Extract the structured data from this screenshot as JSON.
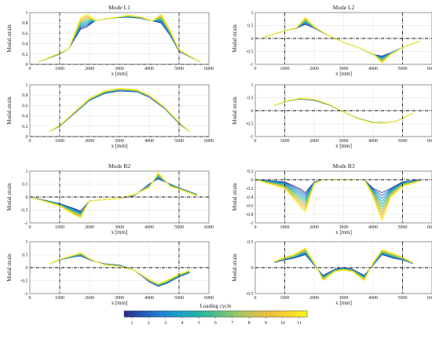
{
  "chart_data": {
    "type": "line",
    "cycles": [
      1,
      2,
      3,
      4,
      5,
      6,
      7,
      8,
      9,
      10,
      11
    ],
    "colorbar": {
      "label": "Loading cycle",
      "ticks": [
        "1",
        "2",
        "3",
        "4",
        "5",
        "6",
        "7",
        "8",
        "9",
        "10",
        "11"
      ],
      "colors": [
        "#2b2f8e",
        "#1f5bb8",
        "#1e82d4",
        "#1aa2c8",
        "#21b3a4",
        "#4fbd86",
        "#8fc56a",
        "#c6c452",
        "#edbc3c",
        "#f9d12e",
        "#f7f41a"
      ]
    },
    "xlim": [
      0,
      6000
    ],
    "xticks": [
      "0",
      "1000",
      "2000",
      "3000",
      "4000",
      "5000",
      "6000"
    ],
    "xlabel": "x [mm]",
    "ylabel": "Modal strain",
    "vlines": [
      1000,
      5000
    ],
    "hline": 0,
    "panels": [
      {
        "id": "l1-measured",
        "title": "Mode L1",
        "ylim": [
          0,
          1
        ],
        "yticks": [
          "0",
          "0.2",
          "0.4",
          "0.6",
          "0.8",
          "1"
        ],
        "x": [
          300,
          1000,
          1300,
          1700,
          1900,
          2200,
          2900,
          3300,
          3700,
          4100,
          4400,
          4700,
          5000,
          5700
        ],
        "first": [
          0.05,
          0.2,
          0.3,
          0.68,
          0.72,
          0.85,
          0.9,
          0.91,
          0.89,
          0.84,
          0.8,
          0.56,
          0.25,
          0.05
        ],
        "last": [
          0.05,
          0.22,
          0.3,
          0.9,
          0.97,
          0.85,
          0.91,
          0.95,
          0.92,
          0.84,
          0.97,
          0.66,
          0.28,
          0.05
        ]
      },
      {
        "id": "l2-measured",
        "title": "Mode L2",
        "ylim": [
          -1,
          1
        ],
        "yticks": [
          "-1",
          "-0.5",
          "0",
          "0.5",
          "1"
        ],
        "x": [
          300,
          1000,
          1400,
          1700,
          2000,
          2500,
          3000,
          3500,
          4000,
          4300,
          4600,
          5000,
          5600
        ],
        "first": [
          0.05,
          0.3,
          0.4,
          0.55,
          0.4,
          0.1,
          -0.15,
          -0.35,
          -0.62,
          -0.68,
          -0.55,
          -0.35,
          -0.1
        ],
        "last": [
          0.05,
          0.3,
          0.42,
          0.82,
          0.46,
          0.1,
          -0.15,
          -0.35,
          -0.6,
          -0.95,
          -0.62,
          -0.35,
          -0.1
        ]
      },
      {
        "id": "l1-model",
        "title": "",
        "ylim": [
          0,
          1
        ],
        "yticks": [
          "0",
          "0.2",
          "0.4",
          "0.6",
          "0.8",
          "1"
        ],
        "x": [
          650,
          1000,
          1500,
          2000,
          2500,
          3000,
          3300,
          3600,
          4000,
          4500,
          5000,
          5350
        ],
        "first": [
          0.1,
          0.2,
          0.45,
          0.7,
          0.83,
          0.88,
          0.87,
          0.86,
          0.76,
          0.55,
          0.25,
          0.1
        ],
        "last": [
          0.1,
          0.22,
          0.48,
          0.74,
          0.88,
          0.93,
          0.92,
          0.9,
          0.8,
          0.58,
          0.28,
          0.1
        ]
      },
      {
        "id": "l2-model",
        "title": "",
        "ylim": [
          -1,
          1
        ],
        "yticks": [
          "-1",
          "-0.5",
          "0",
          "0.5",
          "1"
        ],
        "x": [
          650,
          1000,
          1500,
          2000,
          2500,
          3000,
          3500,
          4000,
          4400,
          4800,
          5350
        ],
        "first": [
          0.2,
          0.35,
          0.45,
          0.4,
          0.22,
          -0.05,
          -0.3,
          -0.45,
          -0.47,
          -0.4,
          -0.1
        ],
        "last": [
          0.2,
          0.36,
          0.48,
          0.44,
          0.25,
          -0.05,
          -0.32,
          -0.47,
          -0.48,
          -0.4,
          -0.1
        ]
      },
      {
        "id": "b2-measured",
        "title": "Mode B2",
        "ylim": [
          -1,
          1
        ],
        "yticks": [
          "-1",
          "-0.5",
          "0",
          "0.5",
          "1"
        ],
        "x": [
          0,
          1000,
          1500,
          1700,
          2000,
          2500,
          3000,
          3500,
          4000,
          4300,
          4700,
          5000,
          5600
        ],
        "first": [
          0.0,
          -0.25,
          -0.45,
          -0.55,
          -0.15,
          -0.1,
          -0.05,
          0.05,
          0.5,
          0.7,
          0.5,
          0.35,
          0.1
        ],
        "last": [
          0.0,
          -0.35,
          -0.7,
          -0.8,
          -0.15,
          -0.1,
          -0.05,
          0.1,
          0.35,
          0.95,
          0.4,
          0.3,
          0.05
        ]
      },
      {
        "id": "b3-measured",
        "title": "Mode B3",
        "ylim": [
          -1,
          0.2
        ],
        "yticks": [
          "-1",
          "-0.8",
          "-0.6",
          "-0.4",
          "-0.2",
          "0",
          "0.2"
        ],
        "x": [
          0,
          1000,
          1500,
          1700,
          2000,
          2300,
          3000,
          3700,
          4000,
          4300,
          4600,
          5000,
          5600
        ],
        "first": [
          0.0,
          -0.05,
          -0.2,
          -0.3,
          -0.05,
          0.0,
          0.0,
          0.0,
          -0.2,
          -0.3,
          -0.2,
          -0.05,
          0.0
        ],
        "last": [
          0.0,
          -0.2,
          -0.6,
          -0.75,
          -0.1,
          0.0,
          0.0,
          0.0,
          -0.4,
          -0.95,
          -0.4,
          -0.15,
          -0.03
        ]
      },
      {
        "id": "b2-model",
        "title": "",
        "ylim": [
          -1,
          1
        ],
        "yticks": [
          "-1",
          "-0.5",
          "0",
          "0.5",
          "1"
        ],
        "x": [
          650,
          1000,
          1500,
          1700,
          2000,
          2500,
          3000,
          3500,
          4000,
          4300,
          4600,
          5000,
          5350
        ],
        "first": [
          0.15,
          0.3,
          0.42,
          0.45,
          0.3,
          0.15,
          0.1,
          -0.1,
          -0.55,
          -0.72,
          -0.6,
          -0.35,
          -0.2
        ],
        "last": [
          0.15,
          0.32,
          0.5,
          0.58,
          0.35,
          0.1,
          0.05,
          -0.1,
          -0.45,
          -0.62,
          -0.48,
          -0.25,
          -0.1
        ]
      },
      {
        "id": "b3-model",
        "title": "",
        "ylim": [
          -0.5,
          0.5
        ],
        "yticks": [
          "-0.5",
          "0",
          "0.5"
        ],
        "x": [
          650,
          1000,
          1300,
          1700,
          2000,
          2300,
          2700,
          3000,
          3300,
          3700,
          4000,
          4300,
          4700,
          5000,
          5350
        ],
        "first": [
          0.1,
          0.15,
          0.18,
          0.25,
          0.05,
          -0.15,
          -0.03,
          0.0,
          -0.03,
          -0.15,
          0.05,
          0.25,
          0.18,
          0.15,
          0.08
        ],
        "last": [
          0.12,
          0.2,
          0.25,
          0.38,
          0.1,
          -0.25,
          -0.08,
          -0.05,
          -0.08,
          -0.25,
          0.1,
          0.35,
          0.27,
          0.2,
          0.1
        ]
      }
    ]
  }
}
